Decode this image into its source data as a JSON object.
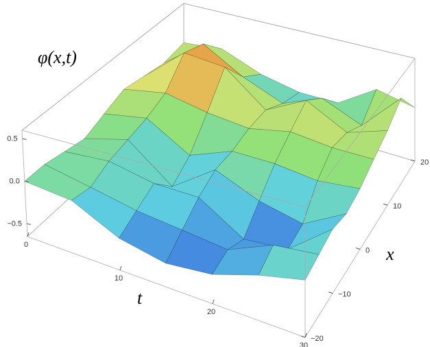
{
  "chart_data": {
    "type": "surface",
    "z_label": "φ(x,t)",
    "t_label": "t",
    "x_label": "x",
    "t": [
      0,
      5,
      10,
      15,
      20,
      25,
      30
    ],
    "x": [
      -20,
      -15,
      -10,
      -5,
      0,
      5,
      10,
      15,
      20
    ],
    "z": [
      [
        0.0,
        0.0,
        -0.05,
        -0.1,
        0.0,
        0.1,
        0.05,
        0.0,
        0.05
      ],
      [
        -0.05,
        -0.1,
        0.0,
        0.05,
        0.1,
        0.2,
        0.5,
        0.4,
        0.1
      ],
      [
        -0.3,
        -0.2,
        -0.1,
        -0.35,
        -0.2,
        0.1,
        0.45,
        0.1,
        -0.1
      ],
      [
        -0.4,
        -0.25,
        -0.1,
        0.0,
        0.0,
        0.05,
        0.05,
        -0.1,
        -0.2
      ],
      [
        -0.35,
        -0.3,
        -0.4,
        -0.2,
        0.0,
        0.15,
        0.3,
        0.1,
        -0.2
      ],
      [
        -0.2,
        -0.1,
        -0.35,
        -0.3,
        -0.05,
        0.1,
        0.05,
        -0.1,
        0.1
      ],
      [
        -0.1,
        -0.05,
        0.0,
        -0.05,
        0.0,
        0.1,
        0.2,
        0.35,
        0.0
      ]
    ],
    "tlim": [
      0,
      30
    ],
    "xlim": [
      -20,
      20
    ],
    "zlim": [
      -0.65,
      0.6
    ],
    "tticks": [
      0,
      10,
      20,
      30
    ],
    "xticks": [
      {
        "value": -20,
        "label": "−20"
      },
      {
        "value": -10,
        "label": "−10"
      },
      0,
      10,
      20
    ],
    "zticks": [
      {
        "value": -0.5,
        "label": "−0.5"
      },
      {
        "value": 0,
        "label": "0.0"
      },
      0.5
    ]
  }
}
